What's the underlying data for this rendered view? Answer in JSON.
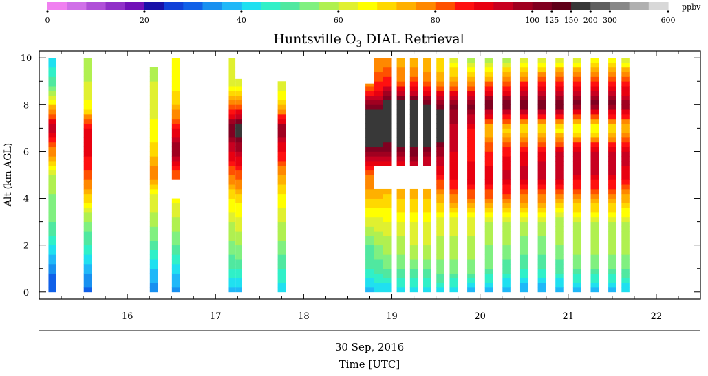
{
  "chart_data": {
    "type": "heatmap",
    "title_main": "Huntsville O",
    "title_sub": "3",
    "title_rest": " DIAL Retrieval",
    "ylabel": "Alt (km AGL)",
    "date_label": "30 Sep, 2016",
    "xlabel": "Time [UTC]",
    "x_unit": "hour UTC",
    "xlim": [
      15.0,
      22.5
    ],
    "ylim": [
      -0.3,
      10.3
    ],
    "x_ticks": [
      16,
      17,
      18,
      19,
      20,
      21,
      22
    ],
    "y_ticks": [
      0,
      2,
      4,
      6,
      8,
      10
    ],
    "grid": false,
    "colorbar": {
      "unit": "ppbv",
      "position": "top",
      "tick_labels": [
        "0",
        "20",
        "40",
        "60",
        "80",
        "100",
        "125",
        "150",
        "200",
        "300",
        "600"
      ],
      "colors": [
        "#f080f0",
        "#d070e8",
        "#b050d8",
        "#9030c8",
        "#7010b8",
        "#1810a8",
        "#1040d8",
        "#1060e8",
        "#1890f0",
        "#20b8f8",
        "#20e0f0",
        "#30f0c8",
        "#50e8a0",
        "#80f080",
        "#b0f050",
        "#e0f030",
        "#ffff00",
        "#ffd800",
        "#ffb000",
        "#ff8800",
        "#ff5000",
        "#ff1010",
        "#e80010",
        "#c80020",
        "#a00020",
        "#800020",
        "#600018",
        "#383838",
        "#606060",
        "#888888",
        "#b0b0b0",
        "#d8d8d8"
      ]
    },
    "profile_times": [
      15.15,
      15.55,
      16.3,
      16.55,
      17.2,
      17.25,
      17.75,
      18.75,
      18.85,
      18.95,
      19.1,
      19.25,
      19.4,
      19.55,
      19.7,
      19.9,
      20.1,
      20.3,
      20.5,
      20.7,
      20.9,
      21.1,
      21.3,
      21.5,
      21.65
    ],
    "altitudes_km": [
      0,
      1,
      2,
      3,
      4,
      5,
      6,
      7,
      8,
      9,
      10
    ],
    "ozone_ppbv": [
      [
        28,
        33,
        45,
        52,
        55,
        60,
        78,
        96,
        70,
        50,
        40
      ],
      [
        30,
        38,
        48,
        55,
        70,
        82,
        90,
        88,
        65,
        60,
        58
      ],
      [
        32,
        40,
        50,
        58,
        62,
        80,
        70,
        65,
        62,
        60,
        58
      ],
      [
        34,
        42,
        52,
        58,
        65,
        82,
        100,
        88,
        72,
        66,
        64
      ],
      [
        38,
        48,
        55,
        60,
        68,
        80,
        92,
        105,
        78,
        62,
        60
      ],
      [
        38,
        48,
        56,
        62,
        70,
        82,
        95,
        110,
        80,
        62,
        60
      ],
      [
        40,
        48,
        55,
        60,
        66,
        76,
        88,
        100,
        70,
        60,
        58
      ],
      [
        38,
        48,
        52,
        62,
        72,
        80,
        100,
        120,
        100,
        75,
        70
      ],
      [
        40,
        50,
        56,
        62,
        72,
        82,
        100,
        120,
        102,
        82,
        76
      ],
      [
        40,
        52,
        58,
        64,
        70,
        82,
        100,
        115,
        110,
        85,
        75
      ],
      [
        42,
        52,
        58,
        64,
        72,
        80,
        102,
        115,
        110,
        80,
        72
      ],
      [
        42,
        52,
        60,
        64,
        72,
        82,
        102,
        118,
        108,
        82,
        72
      ],
      [
        42,
        52,
        60,
        64,
        72,
        84,
        100,
        118,
        105,
        78,
        72
      ],
      [
        42,
        54,
        58,
        62,
        74,
        88,
        98,
        115,
        102,
        75,
        68
      ],
      [
        40,
        54,
        58,
        62,
        78,
        90,
        92,
        95,
        102,
        75,
        62
      ],
      [
        38,
        54,
        58,
        62,
        80,
        92,
        86,
        88,
        102,
        75,
        58
      ],
      [
        38,
        52,
        56,
        60,
        80,
        92,
        84,
        72,
        104,
        78,
        56
      ],
      [
        36,
        50,
        56,
        60,
        80,
        94,
        86,
        70,
        104,
        80,
        56
      ],
      [
        36,
        48,
        54,
        60,
        78,
        94,
        88,
        68,
        104,
        82,
        58
      ],
      [
        36,
        48,
        54,
        60,
        78,
        94,
        90,
        66,
        104,
        84,
        58
      ],
      [
        36,
        50,
        56,
        58,
        76,
        94,
        92,
        64,
        104,
        86,
        60
      ],
      [
        38,
        52,
        58,
        60,
        76,
        92,
        94,
        62,
        104,
        86,
        60
      ],
      [
        38,
        52,
        58,
        60,
        76,
        92,
        94,
        62,
        102,
        86,
        62
      ],
      [
        38,
        52,
        58,
        60,
        76,
        92,
        94,
        66,
        102,
        86,
        62
      ],
      [
        40,
        52,
        58,
        60,
        74,
        90,
        94,
        70,
        100,
        84,
        60
      ]
    ],
    "profile_tops_km": [
      10,
      10,
      9.6,
      10,
      10,
      9.1,
      9.0,
      8.9,
      10,
      10,
      10,
      10,
      10,
      10,
      10,
      10,
      10,
      10,
      10,
      10,
      10,
      10,
      10,
      10,
      10
    ],
    "profile_gaps_km": [
      null,
      null,
      null,
      [
        4.0,
        4.9
      ],
      null,
      null,
      null,
      null,
      [
        4.5,
        5.4
      ],
      [
        4.5,
        5.5
      ],
      [
        4.4,
        5.4
      ],
      [
        4.4,
        5.4
      ],
      [
        4.5,
        5.4
      ],
      null,
      null,
      null,
      null,
      null,
      null,
      null,
      null,
      null,
      null,
      null,
      null
    ]
  }
}
